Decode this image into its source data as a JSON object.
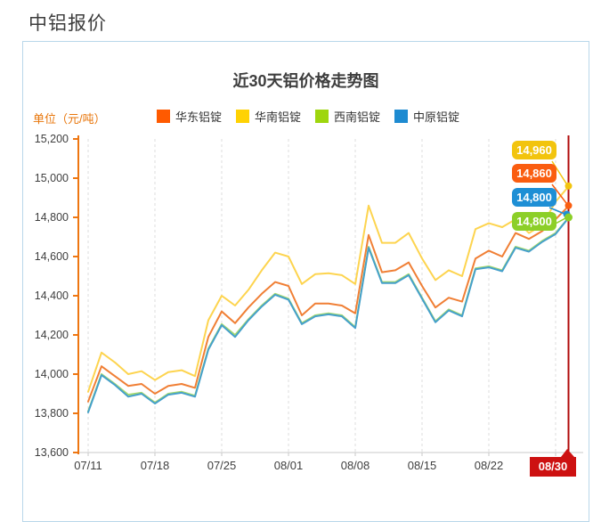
{
  "page": {
    "title": "中铝报价"
  },
  "chart": {
    "title": "近30天铝价格走势图",
    "unit_label": "单位（元/吨）",
    "legend": [
      {
        "label": "华东铝锭",
        "swatch_color": "#ff5a00"
      },
      {
        "label": "华南铝锭",
        "swatch_color": "#ffd203"
      },
      {
        "label": "西南铝锭",
        "swatch_color": "#9ed60e"
      },
      {
        "label": "中原铝锭",
        "swatch_color": "#1e8bd1"
      }
    ],
    "colors": {
      "axis_orange": "#ee7611",
      "axis_gray": "#c9c9c9",
      "grid": "#dcdcdc",
      "tick_text": "#3f3f3f",
      "marker_line": "#b00b0b"
    }
  },
  "chart_data": {
    "type": "line",
    "title": "近30天铝价格走势图",
    "unit": "元/吨",
    "ylim": [
      13600,
      15200
    ],
    "yticks": [
      "15,200",
      "15,000",
      "14,800",
      "14,600",
      "14,400",
      "14,200",
      "14,000",
      "13,800",
      "13,600"
    ],
    "xticks": [
      "07/11",
      "07/18",
      "07/25",
      "08/01",
      "08/08",
      "08/15",
      "08/22"
    ],
    "highlight_x": "08/30",
    "grid": "vertical-dashed",
    "legend_position": "top",
    "x": [
      "07/11",
      "07/12",
      "07/13",
      "07/14",
      "07/15",
      "07/18",
      "07/19",
      "07/20",
      "07/21",
      "07/22",
      "07/25",
      "07/26",
      "07/27",
      "07/28",
      "07/29",
      "08/01",
      "08/02",
      "08/03",
      "08/04",
      "08/05",
      "08/08",
      "08/09",
      "08/10",
      "08/11",
      "08/12",
      "08/15",
      "08/16",
      "08/17",
      "08/18",
      "08/19",
      "08/22",
      "08/23",
      "08/24",
      "08/25",
      "08/26",
      "08/29",
      "08/30"
    ],
    "series": [
      {
        "name": "华东铝锭",
        "color": "#f07f35",
        "values": [
          13860,
          14040,
          13990,
          13940,
          13950,
          13900,
          13940,
          13950,
          13930,
          14190,
          14320,
          14260,
          14340,
          14410,
          14470,
          14450,
          14300,
          14360,
          14360,
          14350,
          14310,
          14710,
          14520,
          14530,
          14570,
          14450,
          14340,
          14390,
          14370,
          14590,
          14630,
          14600,
          14720,
          14690,
          14730,
          14790,
          14860
        ]
      },
      {
        "name": "华南铝锭",
        "color": "#fdd44f",
        "values": [
          13910,
          14110,
          14060,
          14000,
          14015,
          13970,
          14010,
          14020,
          13990,
          14275,
          14400,
          14350,
          14430,
          14530,
          14620,
          14600,
          14460,
          14510,
          14515,
          14505,
          14460,
          14860,
          14670,
          14670,
          14720,
          14590,
          14480,
          14530,
          14500,
          14740,
          14770,
          14750,
          14790,
          14720,
          14760,
          14880,
          14960
        ]
      },
      {
        "name": "西南铝锭",
        "color": "#a5d96e",
        "values": [
          13810,
          14000,
          13950,
          13895,
          13905,
          13855,
          13900,
          13910,
          13890,
          14130,
          14255,
          14200,
          14280,
          14350,
          14410,
          14385,
          14260,
          14300,
          14310,
          14300,
          14240,
          14650,
          14470,
          14470,
          14510,
          14390,
          14270,
          14330,
          14300,
          14540,
          14550,
          14530,
          14650,
          14630,
          14680,
          14720,
          14800
        ]
      },
      {
        "name": "中原铝锭",
        "color": "#45a0cb",
        "values": [
          13805,
          13995,
          13945,
          13885,
          13900,
          13850,
          13895,
          13905,
          13885,
          14125,
          14250,
          14190,
          14275,
          14345,
          14405,
          14380,
          14255,
          14295,
          14305,
          14295,
          14235,
          14645,
          14465,
          14465,
          14505,
          14385,
          14265,
          14325,
          14295,
          14535,
          14545,
          14525,
          14645,
          14625,
          14675,
          14715,
          14800
        ]
      }
    ]
  },
  "callouts": [
    {
      "value": "14,960",
      "series": "华南铝锭",
      "color": "#f2c40e",
      "num": 14960
    },
    {
      "value": "14,860",
      "series": "华东铝锭",
      "color": "#fa5d10",
      "num": 14860
    },
    {
      "value": "14,800",
      "series": "中原铝锭",
      "color": "#1e8fd5",
      "num": 14800
    },
    {
      "value": "14,800",
      "series": "西南铝锭",
      "color": "#8ccf28",
      "num": 14800
    }
  ],
  "x_highlight": {
    "label": "08/30",
    "color": "#cd1111"
  }
}
